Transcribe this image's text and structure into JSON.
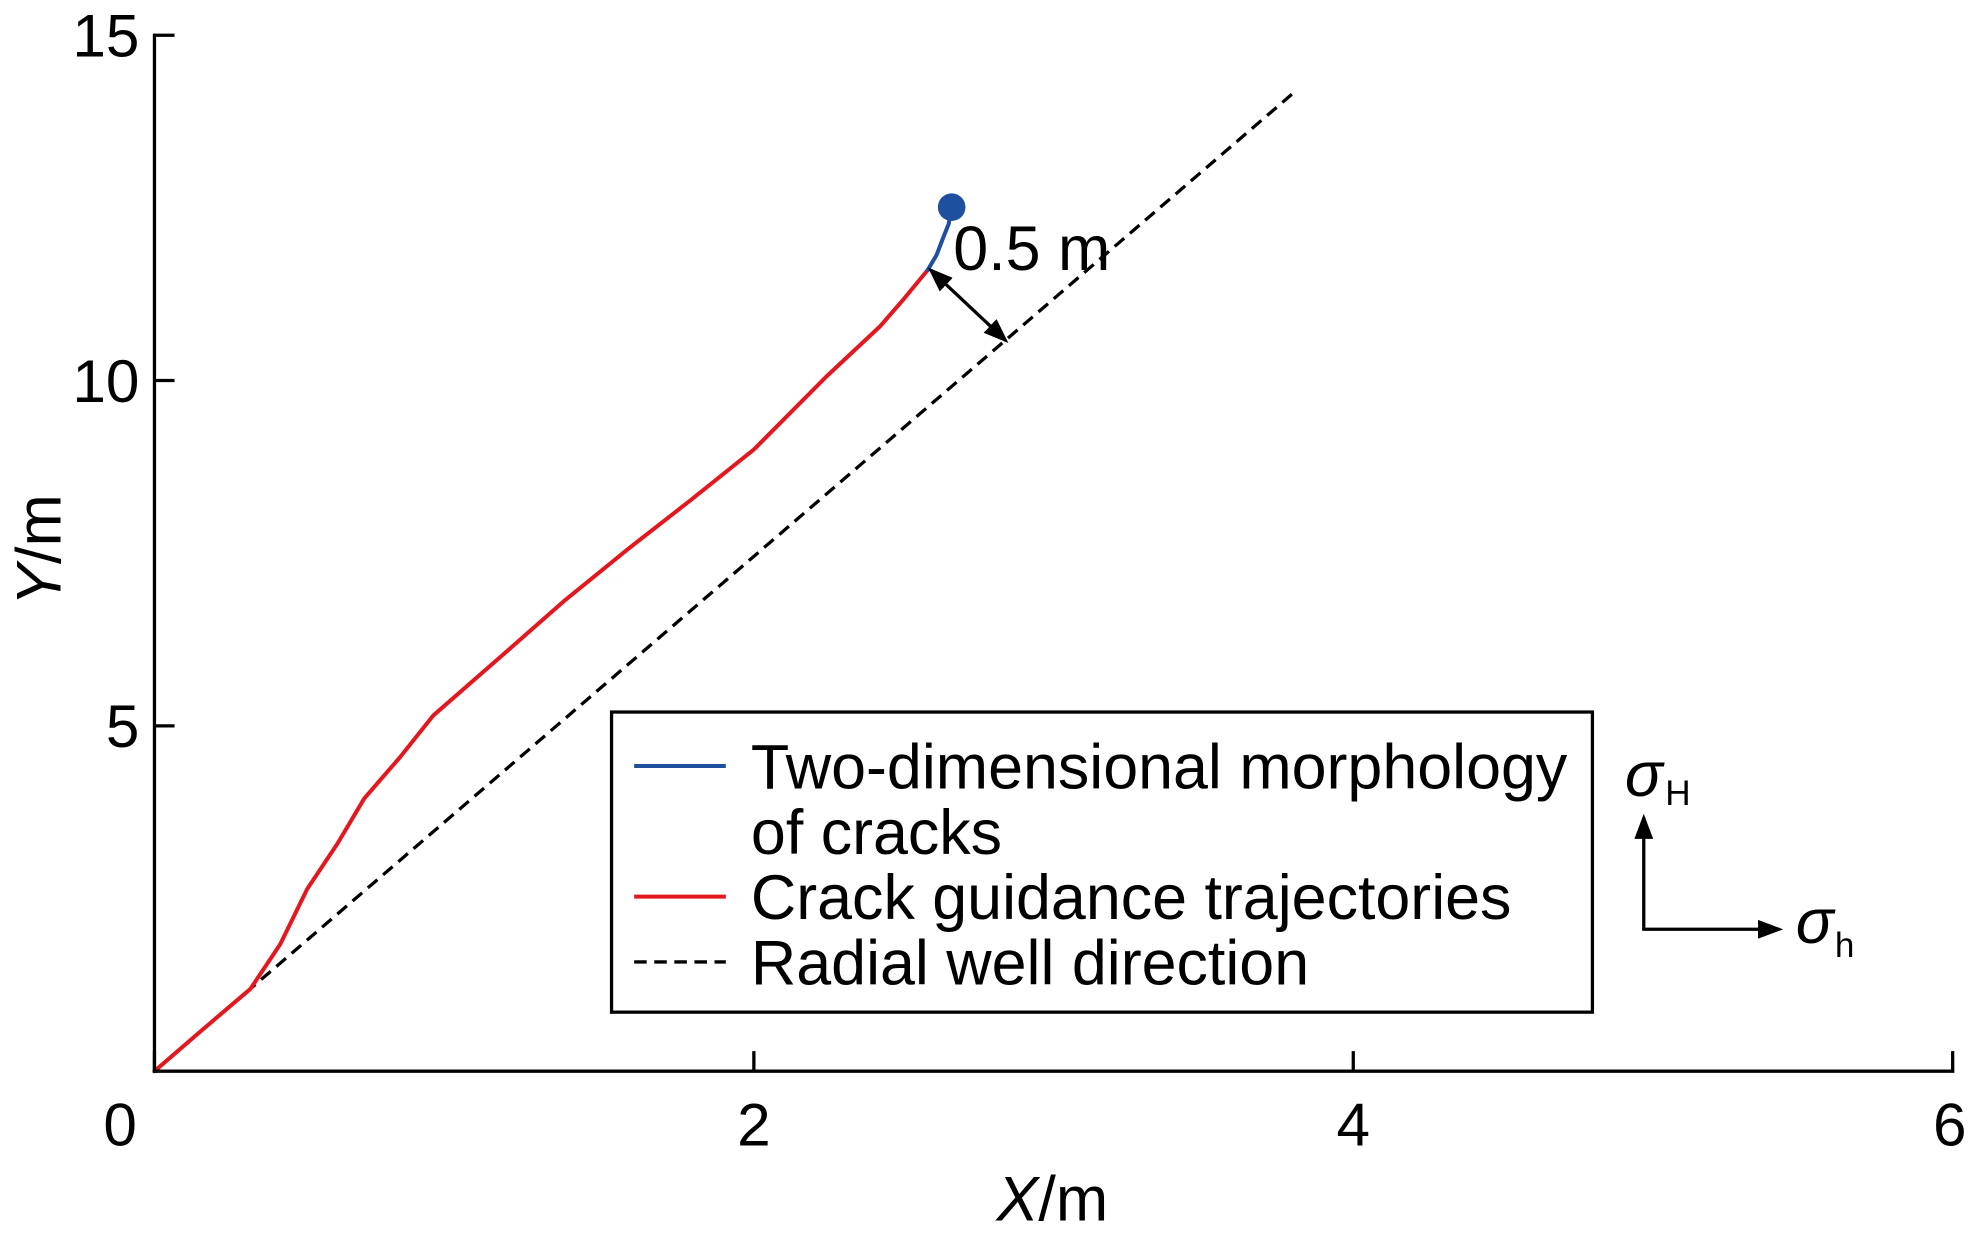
{
  "chart_data": {
    "type": "line",
    "xlabel": "X/m",
    "ylabel": "Y/m",
    "xlim": [
      0,
      6
    ],
    "ylim": [
      0,
      15
    ],
    "x_ticks": [
      0,
      2,
      4,
      6
    ],
    "y_ticks": [
      5,
      10,
      15
    ],
    "grid": false,
    "legend_position": "lower-right",
    "series": [
      {
        "name": "Two-dimensional morphology of cracks",
        "color": "#1f4f9f",
        "line_style": "solid",
        "end_marker": "circle",
        "x": [
          2.58,
          2.61,
          2.63,
          2.65,
          2.66
        ],
        "y": [
          11.6,
          11.82,
          12.05,
          12.27,
          12.51
        ]
      },
      {
        "name": "Crack guidance trajectories",
        "color": "#e3171e",
        "line_style": "solid",
        "x": [
          0,
          0.16,
          0.32,
          0.42,
          0.51,
          0.61,
          0.7,
          0.82,
          0.93,
          1.16,
          1.37,
          1.58,
          1.79,
          2.0,
          2.24,
          2.42,
          2.5,
          2.58
        ],
        "y": [
          0,
          0.6,
          1.19,
          1.84,
          2.64,
          3.29,
          3.95,
          4.55,
          5.15,
          6.02,
          6.82,
          7.56,
          8.27,
          9.0,
          10.05,
          10.78,
          11.18,
          11.6
        ]
      },
      {
        "name": "Radial well direction",
        "color": "#000000",
        "line_style": "dashed",
        "x": [
          0,
          3.81
        ],
        "y": [
          0,
          14.2
        ]
      }
    ],
    "annotations": [
      {
        "text": "0.5 m",
        "arrow": "double",
        "from": [
          2.59,
          11.6
        ],
        "to": [
          2.84,
          10.58
        ]
      }
    ],
    "stress_indicator": {
      "vertical": {
        "symbol": "σ",
        "subscript": "H"
      },
      "horizontal": {
        "symbol": "σ",
        "subscript": "h"
      }
    }
  }
}
